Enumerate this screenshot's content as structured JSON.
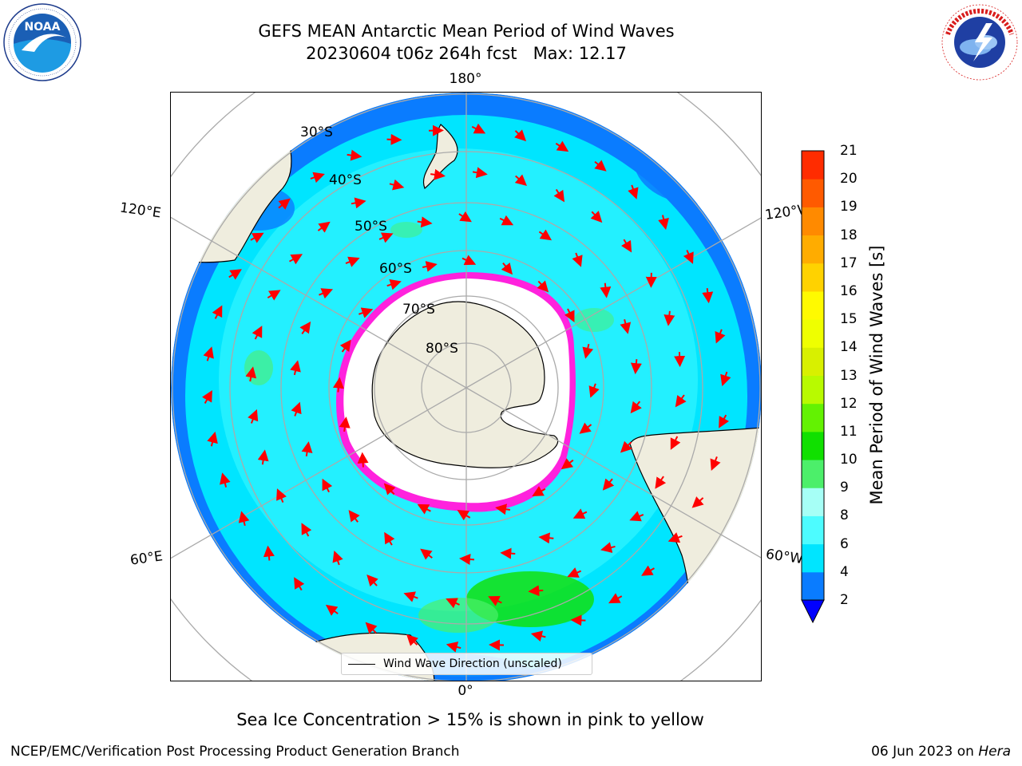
{
  "header": {
    "title_line1": "GEFS MEAN Antarctic Mean Period of Wind Waves",
    "title_line2": "20230604 t06z 264h fcst   Max: 12.17"
  },
  "logos": {
    "left": "noaa-logo",
    "right": "national-weather-service-logo",
    "left_ring_text": "NATIONAL OCEANIC AND ATMOSPHERIC ADMINISTRATION · U.S. DEPARTMENT OF COMMERCE",
    "left_center_text": "NOAA",
    "right_ring_text": "NATIONAL WEATHER SERVICE"
  },
  "map": {
    "projection": "south-polar-stereographic",
    "longitude_labels": {
      "top": "180°",
      "bottom": "0°",
      "upper_left": "120°E",
      "upper_right": "120°W",
      "lower_left": "60°E",
      "lower_right": "60°W"
    },
    "latitude_labels": [
      "30°S",
      "40°S",
      "50°S",
      "60°S",
      "70°S",
      "80°S"
    ],
    "legend_text": "Wind Wave Direction (unscaled)",
    "arrow_color": "#ff0000",
    "land_color": "#efedde"
  },
  "colorbar": {
    "label": "Mean Period of Wind Waves [s]",
    "ticks": [
      "2",
      "4",
      "6",
      "8",
      "9",
      "10",
      "11",
      "12",
      "13",
      "14",
      "15",
      "16",
      "17",
      "18",
      "19",
      "20",
      "21"
    ],
    "colors": [
      "#0a7cff",
      "#00e5ff",
      "#4dfcff",
      "#a6fff6",
      "#4cef6a",
      "#10e000",
      "#63f202",
      "#b8fa00",
      "#d8f000",
      "#efff00",
      "#fffa00",
      "#ffd200",
      "#ffac00",
      "#ff8a00",
      "#ff5a00",
      "#ff2c00"
    ],
    "extend_color": "#0000ff"
  },
  "note": "Sea Ice Concentration > 15% is shown in pink to yellow",
  "footer": {
    "left": "NCEP/EMC/Verification Post Processing Product Generation Branch",
    "right_date": "06 Jun 2023 on",
    "right_host": "Hera"
  }
}
